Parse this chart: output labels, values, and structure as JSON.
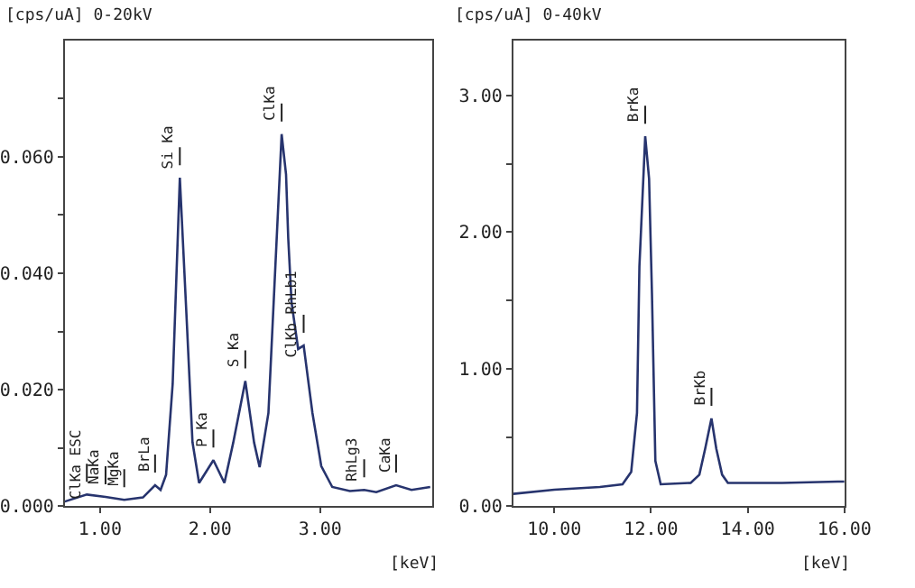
{
  "chart_data": [
    {
      "type": "line",
      "ylabel": "[cps/uA] 0-20kV",
      "xlabel": "[keV]",
      "marker": "none",
      "line_style": "solid",
      "x": [
        0.68,
        0.88,
        1.05,
        1.22,
        1.39,
        1.5,
        1.55,
        1.6,
        1.66,
        1.725,
        1.79,
        1.84,
        1.9,
        2.03,
        2.13,
        2.21,
        2.32,
        2.4,
        2.45,
        2.53,
        2.58,
        2.65,
        2.69,
        2.71,
        2.74,
        2.8,
        2.85,
        2.93,
        3.01,
        3.11,
        3.27,
        3.4,
        3.51,
        3.69,
        3.83,
        4.0
      ],
      "series": [
        {
          "color": "#27346e",
          "values": [
            0.0008,
            0.002,
            0.0016,
            0.0011,
            0.0015,
            0.0036,
            0.0028,
            0.0054,
            0.021,
            0.0564,
            0.031,
            0.011,
            0.004,
            0.0079,
            0.004,
            0.0109,
            0.0215,
            0.0109,
            0.0067,
            0.016,
            0.036,
            0.0639,
            0.057,
            0.046,
            0.035,
            0.027,
            0.0276,
            0.016,
            0.0069,
            0.0033,
            0.0026,
            0.0028,
            0.0024,
            0.0036,
            0.0028,
            0.0033
          ]
        }
      ],
      "xlim": [
        0.68,
        4.02
      ],
      "xticks": [
        {
          "value": 1,
          "label": "1.00"
        },
        {
          "value": 2,
          "label": "2.00"
        },
        {
          "value": 3,
          "label": "3.00"
        }
      ],
      "ylim": [
        0,
        0.08
      ],
      "yticks": [
        {
          "value": 0,
          "label": "0.000"
        },
        {
          "value": 0.01,
          "label": null
        },
        {
          "value": 0.02,
          "label": "0.020"
        },
        {
          "value": 0.03,
          "label": null
        },
        {
          "value": 0.04,
          "label": "0.040"
        },
        {
          "value": 0.05,
          "label": null
        },
        {
          "value": 0.06,
          "label": "0.060"
        },
        {
          "value": 0.07,
          "label": null
        }
      ],
      "annotations": [
        {
          "text": "ClKa ESC",
          "x": 0.88,
          "y": 0.002
        },
        {
          "text": "NaKa",
          "x": 1.05,
          "y": 0.0016
        },
        {
          "text": "MgKa",
          "x": 1.22,
          "y": 0.0011
        },
        {
          "text": "BrLa",
          "x": 1.5,
          "y": 0.0036
        },
        {
          "text": "Si Ka",
          "x": 1.725,
          "y": 0.0564
        },
        {
          "text": "P Ka",
          "x": 2.03,
          "y": 0.0079
        },
        {
          "text": "S Ka",
          "x": 2.32,
          "y": 0.0215
        },
        {
          "text": "ClKa",
          "x": 2.65,
          "y": 0.0639
        },
        {
          "text": "ClKb RhLb1",
          "x": 2.85,
          "y": 0.0276
        },
        {
          "text": "RhLg3",
          "x": 3.4,
          "y": 0.0028
        },
        {
          "text": "CaKa",
          "x": 3.69,
          "y": 0.0036
        }
      ]
    },
    {
      "type": "line",
      "ylabel": "[cps/uA] 0-40kV",
      "xlabel": "[keV]",
      "marker": "none",
      "line_style": "solid",
      "x": [
        9.15,
        10.0,
        10.94,
        11.41,
        11.59,
        11.71,
        11.76,
        11.88,
        11.96,
        12.02,
        12.09,
        12.2,
        12.82,
        13.0,
        13.12,
        13.25,
        13.35,
        13.47,
        13.59,
        14.71,
        15.86,
        16.0
      ],
      "series": [
        {
          "color": "#27346e",
          "values": [
            0.09,
            0.12,
            0.14,
            0.16,
            0.25,
            0.68,
            1.75,
            2.7,
            2.39,
            1.54,
            0.33,
            0.16,
            0.17,
            0.23,
            0.42,
            0.64,
            0.42,
            0.23,
            0.17,
            0.17,
            0.18,
            0.18
          ]
        }
      ],
      "xlim": [
        9.15,
        16.0
      ],
      "xticks": [
        {
          "value": 10,
          "label": "10.00"
        },
        {
          "value": 12,
          "label": "12.00"
        },
        {
          "value": 14,
          "label": "14.00"
        },
        {
          "value": 16,
          "label": "16.00"
        }
      ],
      "ylim": [
        0,
        3.4
      ],
      "yticks": [
        {
          "value": 0,
          "label": "0.00"
        },
        {
          "value": 0.5,
          "label": null
        },
        {
          "value": 1,
          "label": "1.00"
        },
        {
          "value": 1.5,
          "label": null
        },
        {
          "value": 2,
          "label": "2.00"
        },
        {
          "value": 2.5,
          "label": null
        },
        {
          "value": 3,
          "label": "3.00"
        }
      ],
      "annotations": [
        {
          "text": "BrKa",
          "x": 11.88,
          "y": 2.7
        },
        {
          "text": "BrKb",
          "x": 13.25,
          "y": 0.64
        }
      ]
    }
  ]
}
